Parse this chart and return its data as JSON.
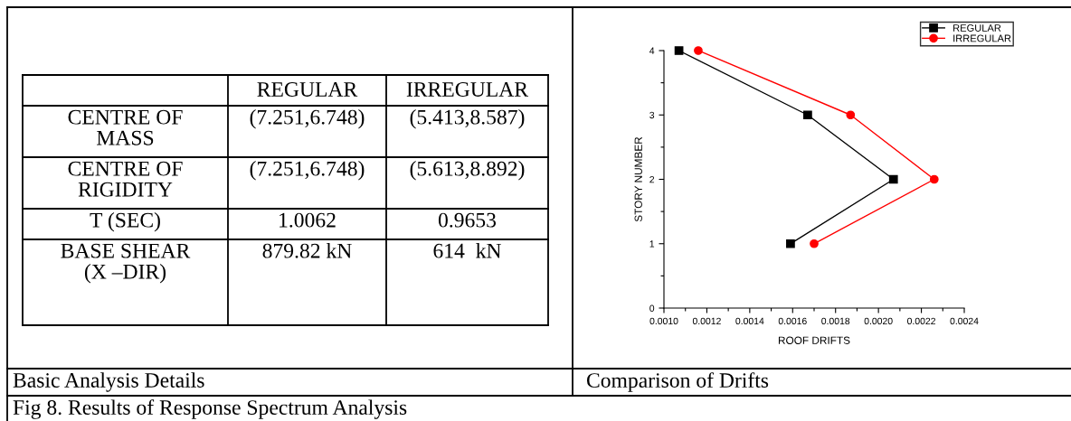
{
  "chart_data": [
    {
      "type": "other",
      "categories": [
        "REGULAR",
        "IRREGULAR"
      ],
      "y_categories": [
        "CENTRE OF\nMASS",
        "CENTRE OF\nRIGIDITY",
        "T (SEC)",
        "BASE SHEAR\n(X –DIR)"
      ],
      "cell_labels": [
        [
          "(7.251,6.748)",
          "(5.413,8.587)"
        ],
        [
          "(7.251,6.748)",
          "(5.613,8.892)"
        ],
        [
          "1.0062",
          "0.9653"
        ],
        [
          "879.82 kN",
          "614  kN"
        ]
      ],
      "annotations": [
        "Basic Analysis Details",
        "Fig 8. Results of Response Spectrum Analysis"
      ]
    },
    {
      "type": "line",
      "xlabel": "ROOF DRIFTS",
      "ylabel": "STORY NUMBER",
      "series": [
        {
          "name": "REGULAR",
          "color": "#000000",
          "marker": "square",
          "x": [
            0.00107,
            0.00167,
            0.00207,
            0.00159
          ],
          "values": [
            4,
            3,
            2,
            1
          ]
        },
        {
          "name": "IRREGULAR",
          "color": "#ff0000",
          "marker": "circle",
          "x": [
            0.00116,
            0.00187,
            0.00226,
            0.0017
          ],
          "values": [
            4,
            3,
            2,
            1
          ]
        }
      ],
      "xlim": [
        0.001,
        0.0024
      ],
      "xticks": [
        {
          "value": 0.001,
          "label": "0.0010"
        },
        {
          "value": 0.0012,
          "label": "0.0012"
        },
        {
          "value": 0.0014,
          "label": "0.0014"
        },
        {
          "value": 0.0016,
          "label": "0.0016"
        },
        {
          "value": 0.0018,
          "label": "0.0018"
        },
        {
          "value": 0.002,
          "label": "0.0020"
        },
        {
          "value": 0.0022,
          "label": "0.0022"
        },
        {
          "value": 0.0024,
          "label": "0.0024"
        }
      ],
      "ylim": [
        0,
        4
      ],
      "yticks": [
        0,
        1,
        2,
        3,
        4
      ],
      "grid": false,
      "legend": "top right",
      "annotations": [
        "Comparison of Drifts"
      ]
    }
  ]
}
